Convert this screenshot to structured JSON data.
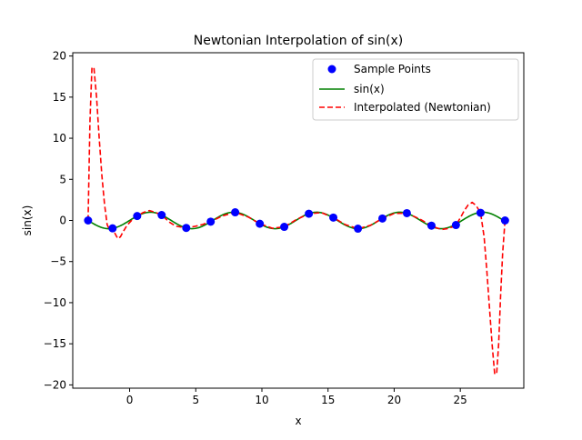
{
  "chart_data": {
    "type": "line",
    "title": "Newtonian Interpolation of sin(x)",
    "xlabel": "x",
    "ylabel": "sin(x)",
    "xlim": [
      -4.3,
      29.8
    ],
    "ylim": [
      -20.4,
      20.4
    ],
    "xticks": [
      0,
      5,
      10,
      15,
      20,
      25
    ],
    "yticks": [
      -20,
      -15,
      -10,
      -5,
      0,
      5,
      10,
      15,
      20
    ],
    "grid": false,
    "legend_position": "upper right",
    "series": [
      {
        "name": "Sample Points",
        "kind": "scatter",
        "color": "#0000ff",
        "x": [
          -3.14,
          -1.29,
          0.57,
          2.42,
          4.28,
          6.13,
          7.98,
          9.84,
          11.69,
          13.55,
          15.4,
          17.26,
          19.11,
          20.96,
          22.82,
          24.67,
          26.53,
          28.38
        ],
        "y": [
          0.0,
          -0.96,
          0.54,
          0.66,
          -0.91,
          -0.15,
          0.99,
          -0.4,
          -0.78,
          0.82,
          0.35,
          -1.0,
          0.24,
          0.89,
          -0.63,
          -0.56,
          0.93,
          0.0
        ]
      },
      {
        "name": "sin(x)",
        "kind": "line",
        "color": "#008000",
        "function": "sin"
      },
      {
        "name": "Interpolated (Newtonian)",
        "kind": "line",
        "color": "#ff0000",
        "dash": true,
        "x": [
          -3.14,
          -3.0,
          -2.85,
          -2.7,
          -2.5,
          -2.3,
          -2.1,
          -1.9,
          -1.7,
          -1.5,
          -1.29,
          -1.1,
          -0.9,
          -0.7,
          -0.5,
          -0.2,
          0.2,
          0.57,
          1.0,
          1.5,
          2.0,
          2.42,
          3.0,
          3.5,
          4.28,
          5.0,
          5.5,
          6.13,
          7.0,
          7.98,
          9.0,
          9.84,
          10.8,
          11.69,
          12.6,
          13.55,
          14.5,
          15.4,
          16.3,
          17.26,
          18.2,
          19.11,
          20.0,
          20.96,
          21.9,
          22.82,
          23.2,
          23.6,
          24.0,
          24.4,
          24.67,
          25.0,
          25.3,
          25.6,
          25.9,
          26.2,
          26.53,
          26.8,
          27.0,
          27.2,
          27.4,
          27.6,
          27.75,
          27.9,
          28.05,
          28.2,
          28.38
        ],
        "y": [
          0.0,
          12.0,
          18.6,
          18.6,
          15.0,
          10.0,
          5.5,
          2.0,
          -0.5,
          -1.2,
          -0.96,
          -1.6,
          -2.2,
          -2.0,
          -1.4,
          -0.6,
          0.1,
          0.54,
          0.95,
          1.2,
          0.95,
          0.66,
          -0.2,
          -0.7,
          -0.91,
          -0.7,
          -0.5,
          -0.15,
          0.55,
          0.99,
          0.4,
          -0.4,
          -0.95,
          -0.78,
          0.1,
          0.82,
          0.95,
          0.35,
          -0.5,
          -1.0,
          -0.6,
          0.24,
          0.85,
          0.89,
          0.2,
          -0.63,
          -0.9,
          -1.1,
          -1.0,
          -0.8,
          -0.56,
          0.3,
          1.2,
          1.9,
          2.2,
          1.8,
          0.93,
          -2.0,
          -6.0,
          -10.5,
          -15.0,
          -18.7,
          -18.6,
          -15.0,
          -9.0,
          -4.0,
          0.0
        ]
      }
    ]
  }
}
